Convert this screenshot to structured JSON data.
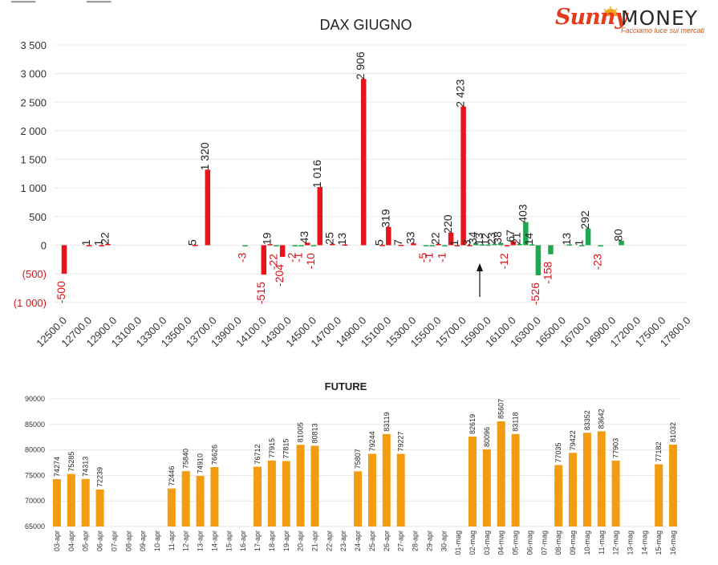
{
  "logo": {
    "brand_a": "Sunny",
    "brand_b": "MONEY",
    "tagline": "Facciamo luce sui mercati"
  },
  "chart_data": [
    {
      "type": "bar",
      "title": "DAX GIUGNO",
      "ylim": [
        -1000,
        3500
      ],
      "yticks": [
        "3 500",
        "3 000",
        "2 500",
        "2 000",
        "1 500",
        "1 000",
        "500",
        "0",
        "(500)",
        "(1 000)"
      ],
      "grid": true,
      "categories": [
        "12500.0",
        "12700.0",
        "12900.0",
        "13100.0",
        "13300.0",
        "13500.0",
        "13700.0",
        "13900.0",
        "14100.0",
        "14300.0",
        "14500.0",
        "14700.0",
        "14900.0",
        "15100.0",
        "15300.0",
        "15500.0",
        "15700.0",
        "15900.0",
        "16100.0",
        "16300.0",
        "16500.0",
        "16700.0",
        "16900.0",
        "17200.0",
        "17500.0",
        "17800.0"
      ],
      "bars": [
        {
          "x": 12500,
          "value": -500,
          "label": "-500",
          "color": "#e8141c"
        },
        {
          "x": 12700,
          "value": 1,
          "label": "1",
          "color": "#e8141c"
        },
        {
          "x": 12800,
          "value": 1,
          "label": "1",
          "color": "#e8141c"
        },
        {
          "x": 12850,
          "value": 22,
          "label": "22",
          "color": "#e8141c"
        },
        {
          "x": 13550,
          "value": 5,
          "label": "5",
          "color": "#e8141c"
        },
        {
          "x": 13650,
          "value": 1320,
          "label": "1 320",
          "color": "#e8141c"
        },
        {
          "x": 13950,
          "value": -3,
          "label": "-3",
          "color": "#1fa84f"
        },
        {
          "x": 14100,
          "value": -515,
          "label": "-515",
          "color": "#e8141c"
        },
        {
          "x": 14150,
          "value": 19,
          "label": "19",
          "color": "#e8141c"
        },
        {
          "x": 14200,
          "value": -22,
          "label": "-22",
          "color": "#1fa84f"
        },
        {
          "x": 14250,
          "value": -204,
          "label": "-204",
          "color": "#e8141c"
        },
        {
          "x": 14350,
          "value": -2,
          "label": "-2",
          "color": "#1fa84f"
        },
        {
          "x": 14400,
          "value": -1,
          "label": "-1",
          "color": "#1fa84f"
        },
        {
          "x": 14450,
          "value": 43,
          "label": "43",
          "color": "#e8141c"
        },
        {
          "x": 14500,
          "value": -10,
          "label": "-10",
          "color": "#1fa84f"
        },
        {
          "x": 14550,
          "value": 1016,
          "label": "1 016",
          "color": "#e8141c"
        },
        {
          "x": 14650,
          "value": 25,
          "label": "25",
          "color": "#e8141c"
        },
        {
          "x": 14750,
          "value": 13,
          "label": "13",
          "color": "#e8141c"
        },
        {
          "x": 14900,
          "value": 2906,
          "label": "2 906",
          "color": "#e8141c"
        },
        {
          "x": 15050,
          "value": 5,
          "label": "5",
          "color": "#e8141c"
        },
        {
          "x": 15100,
          "value": 319,
          "label": "319",
          "color": "#e8141c"
        },
        {
          "x": 15200,
          "value": 7,
          "label": "7",
          "color": "#e8141c"
        },
        {
          "x": 15300,
          "value": 33,
          "label": "33",
          "color": "#e8141c"
        },
        {
          "x": 15400,
          "value": -5,
          "label": "-5",
          "color": "#1fa84f"
        },
        {
          "x": 15450,
          "value": -1,
          "label": "-1",
          "color": "#1fa84f"
        },
        {
          "x": 15500,
          "value": 22,
          "label": "22",
          "color": "#e8141c"
        },
        {
          "x": 15550,
          "value": -1,
          "label": "-1",
          "color": "#1fa84f"
        },
        {
          "x": 15600,
          "value": 220,
          "label": "220",
          "color": "#e8141c"
        },
        {
          "x": 15650,
          "value": 1,
          "label": "1",
          "color": "#e8141c"
        },
        {
          "x": 15700,
          "value": 2423,
          "label": "2 423",
          "color": "#e8141c"
        },
        {
          "x": 15750,
          "value": 3,
          "label": "3",
          "color": "#e8141c"
        },
        {
          "x": 15800,
          "value": 34,
          "label": "34",
          "color": "#1fa84f"
        },
        {
          "x": 15850,
          "value": 13,
          "label": "13",
          "color": "#1fa84f"
        },
        {
          "x": 15900,
          "value": 12,
          "label": "12",
          "color": "#1fa84f"
        },
        {
          "x": 15950,
          "value": 23,
          "label": "23",
          "color": "#1fa84f"
        },
        {
          "x": 16000,
          "value": 38,
          "label": "38",
          "color": "#1fa84f"
        },
        {
          "x": 16050,
          "value": -12,
          "label": "-12",
          "color": "#e8141c"
        },
        {
          "x": 16100,
          "value": 67,
          "label": "67",
          "color": "#e8141c"
        },
        {
          "x": 16150,
          "value": 21,
          "label": "21",
          "color": "#1fa84f"
        },
        {
          "x": 16200,
          "value": 403,
          "label": "403",
          "color": "#1fa84f"
        },
        {
          "x": 16250,
          "value": 14,
          "label": "14",
          "color": "#1fa84f"
        },
        {
          "x": 16300,
          "value": -526,
          "label": "-526",
          "color": "#1fa84f"
        },
        {
          "x": 16400,
          "value": -158,
          "label": "-158",
          "color": "#1fa84f"
        },
        {
          "x": 16550,
          "value": 13,
          "label": "13",
          "color": "#1fa84f"
        },
        {
          "x": 16650,
          "value": 1,
          "label": "1",
          "color": "#1fa84f"
        },
        {
          "x": 16700,
          "value": 292,
          "label": "292",
          "color": "#1fa84f"
        },
        {
          "x": 16800,
          "value": -23,
          "label": "-23",
          "color": "#1fa84f"
        },
        {
          "x": 17000,
          "value": 80,
          "label": "80",
          "color": "#1fa84f"
        }
      ],
      "annotation": "arrow"
    },
    {
      "type": "bar",
      "title": "FUTURE",
      "ylim": [
        65000,
        90000
      ],
      "yticks": [
        "90000",
        "85000",
        "80000",
        "75000",
        "70000",
        "65000"
      ],
      "grid": true,
      "color": "#f39c12",
      "categories": [
        "03-apr",
        "04-apr",
        "05-apr",
        "06-apr",
        "07-apr",
        "08-apr",
        "09-apr",
        "10-apr",
        "11-apr",
        "12-apr",
        "13-apr",
        "14-apr",
        "15-apr",
        "16-apr",
        "17-apr",
        "18-apr",
        "19-apr",
        "20-apr",
        "21-apr",
        "22-apr",
        "23-apr",
        "24-apr",
        "25-apr",
        "26-apr",
        "27-apr",
        "28-apr",
        "29-apr",
        "30-apr",
        "01-mag",
        "02-mag",
        "03-mag",
        "04-mag",
        "05-mag",
        "06-mag",
        "07-mag",
        "08-mag",
        "09-mag",
        "10-mag",
        "11-mag",
        "12-mag",
        "13-mag",
        "14-mag",
        "15-mag",
        "16-mag"
      ],
      "values": [
        74274,
        75285,
        74313,
        72239,
        null,
        null,
        null,
        null,
        72446,
        75840,
        74910,
        76626,
        null,
        null,
        76712,
        77915,
        77815,
        81005,
        80813,
        null,
        null,
        75807,
        79244,
        83119,
        79227,
        null,
        null,
        null,
        null,
        82619,
        80096,
        85607,
        83118,
        null,
        null,
        77035,
        79422,
        83352,
        83642,
        77903,
        null,
        null,
        77182,
        81032
      ]
    }
  ]
}
